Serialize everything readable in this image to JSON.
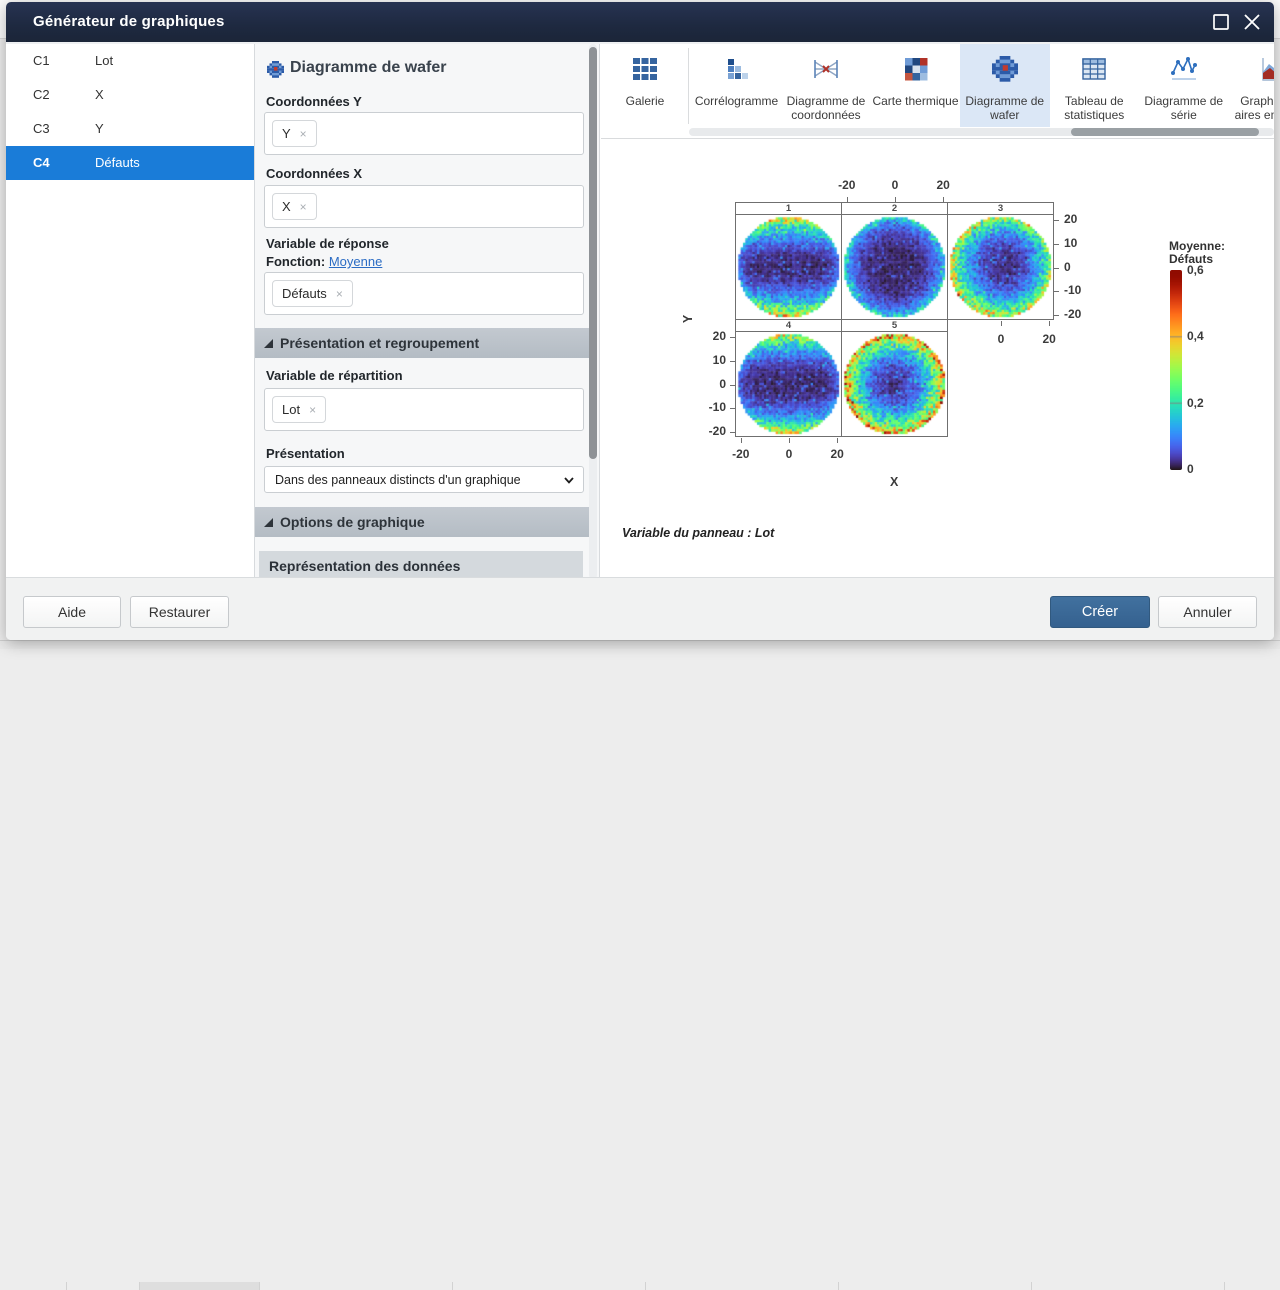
{
  "window": {
    "title": "Générateur de graphiques",
    "controls": {
      "maximize": "Agrandir",
      "close": "Fermer"
    }
  },
  "columns": [
    {
      "id": "C1",
      "name": "Lot",
      "selected": false
    },
    {
      "id": "C2",
      "name": "X",
      "selected": false
    },
    {
      "id": "C3",
      "name": "Y",
      "selected": false
    },
    {
      "id": "C4",
      "name": "Défauts",
      "selected": true
    }
  ],
  "builder": {
    "title": "Diagramme de wafer",
    "y_field": {
      "label": "Coordonnées Y",
      "chip": "Y",
      "remove": "×"
    },
    "x_field": {
      "label": "Coordonnées X",
      "chip": "X",
      "remove": "×"
    },
    "response_field": {
      "label": "Variable de réponse",
      "function_label": "Fonction:",
      "function_value": "Moyenne",
      "chip": "Défauts",
      "remove": "×"
    },
    "section_grouping": "Présentation et regroupement",
    "split_field": {
      "label": "Variable de répartition",
      "chip": "Lot",
      "remove": "×"
    },
    "presentation_field": {
      "label": "Présentation",
      "value": "Dans des panneaux distincts d'un graphique"
    },
    "section_options": "Options de graphique",
    "subsection_data_display": "Représentation des données"
  },
  "gallery": {
    "items": [
      {
        "label": "Galerie",
        "icon": "gallery-grid-icon",
        "selected": false
      },
      {
        "label": "Corrélogramme",
        "icon": "correlogram-icon",
        "selected": false
      },
      {
        "label": "Diagramme de coordonnées",
        "icon": "parallel-coordinates-icon",
        "selected": false
      },
      {
        "label": "Carte thermique",
        "icon": "heatmap-icon",
        "selected": false
      },
      {
        "label": "Diagramme de wafer",
        "icon": "wafer-plot-icon",
        "selected": true
      },
      {
        "label": "Tableau de statistiques",
        "icon": "statistics-table-icon",
        "selected": false
      },
      {
        "label": "Diagramme de série",
        "icon": "series-plot-icon",
        "selected": false
      },
      {
        "label": "Graphique à aires empilées",
        "icon": "stacked-area-icon",
        "selected": false
      }
    ]
  },
  "footer": {
    "help": "Aide",
    "restore": "Restaurer",
    "create": "Créer",
    "cancel": "Annuler"
  },
  "chart_data": {
    "type": "heatmap",
    "subtype": "wafer-map-panels",
    "title": "",
    "xlabel": "X",
    "ylabel": "Y",
    "caption": "Variable du panneau : Lot",
    "panel_variable": "Lot",
    "response": "Défauts",
    "statistic": "Moyenne",
    "axis_range": [
      -22,
      22
    ],
    "wafer_radius": 21.8,
    "grid_cells": 45,
    "x_ticks": [
      -20,
      0,
      20
    ],
    "y_ticks": [
      20,
      10,
      0,
      -10,
      -20
    ],
    "col3_bottom_ticks": [
      0,
      20
    ],
    "decimal_separator": ",",
    "legend": {
      "title_lines": [
        "Moyenne:",
        "Défauts"
      ],
      "min": 0,
      "max": 0.6,
      "ticks": [
        {
          "value": 0.6,
          "label": "0,6"
        },
        {
          "value": 0.4,
          "label": "0,4"
        },
        {
          "value": 0.2,
          "label": "0,2"
        },
        {
          "value": 0,
          "label": "0"
        }
      ],
      "colormap": "turbo"
    },
    "panels": [
      {
        "label": "1",
        "row": 0,
        "col": 0,
        "seed": 101,
        "core": 0.018,
        "band": 0.3,
        "band_pow": 2.3,
        "rad": 0.0,
        "rad_pow": 2.0,
        "rim": 0.07,
        "rim_pow": 8,
        "noise_base": 0.012,
        "fleck_chance": 0.1,
        "fleck_boost": 0.05,
        "speck_axis": "band",
        "speck_min": 0.8,
        "speck_chance": 0.08,
        "speck_boost": 0.08,
        "ox": 0,
        "oy": 0
      },
      {
        "label": "2",
        "row": 0,
        "col": 1,
        "seed": 202,
        "core": 0.018,
        "band": 0.0,
        "band_pow": 2.0,
        "rad": 0.12,
        "rad_pow": 4.0,
        "rim": 0.05,
        "rim_pow": 10,
        "noise_base": 0.012,
        "fleck_chance": 0.06,
        "fleck_boost": 0.04,
        "speck_axis": "radial",
        "speck_min": 0.88,
        "speck_chance": 0.03,
        "speck_boost": 0.06,
        "ox": 0,
        "oy": 0
      },
      {
        "label": "3",
        "row": 0,
        "col": 2,
        "seed": 303,
        "core": 0.022,
        "band": 0.0,
        "band_pow": 2.0,
        "rad": 0.24,
        "rad_pow": 2.5,
        "rim": 0.07,
        "rim_pow": 7,
        "noise_base": 0.014,
        "fleck_chance": 0.1,
        "fleck_boost": 0.05,
        "speck_axis": "radial",
        "speck_min": 0.85,
        "speck_chance": 0.05,
        "speck_boost": 0.13,
        "ox": 1.5,
        "oy": -1
      },
      {
        "label": "4",
        "row": 1,
        "col": 0,
        "seed": 404,
        "core": 0.018,
        "band": 0.28,
        "band_pow": 2.6,
        "rad": 0.0,
        "rad_pow": 2.0,
        "rim": 0.06,
        "rim_pow": 8,
        "noise_base": 0.012,
        "fleck_chance": 0.09,
        "fleck_boost": 0.05,
        "speck_axis": "band",
        "speck_min": 0.8,
        "speck_chance": 0.07,
        "speck_boost": 0.06,
        "ox": 0,
        "oy": 0
      },
      {
        "label": "5",
        "row": 1,
        "col": 1,
        "seed": 505,
        "core": 0.03,
        "band": 0.0,
        "band_pow": 2.0,
        "rad": 0.3,
        "rad_pow": 2.4,
        "rim": 0.1,
        "rim_pow": 5,
        "noise_base": 0.014,
        "fleck_chance": 0.12,
        "fleck_boost": 0.06,
        "speck_axis": "radial",
        "speck_min": 0.82,
        "speck_chance": 0.04,
        "speck_boost": 0.08,
        "ox": 0,
        "oy": 0
      }
    ]
  }
}
